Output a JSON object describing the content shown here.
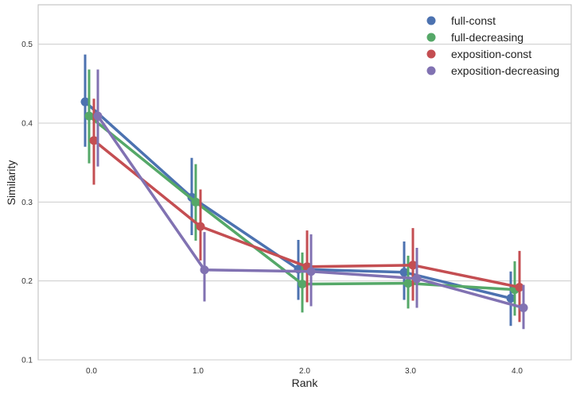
{
  "chart_data": {
    "type": "line",
    "title": "",
    "xlabel": "Rank",
    "ylabel": "Similarity",
    "categories": [
      "0.0",
      "1.0",
      "2.0",
      "3.0",
      "4.0"
    ],
    "yticks": [
      "0.1",
      "0.2",
      "0.3",
      "0.4",
      "0.5"
    ],
    "ylim": [
      0.1,
      0.55
    ],
    "grid": true,
    "legend_position": "top-right",
    "series": [
      {
        "name": "full-const",
        "color": "#4c72b0",
        "values": [
          0.427,
          0.306,
          0.215,
          0.211,
          0.178
        ],
        "lower": [
          0.37,
          0.258,
          0.176,
          0.176,
          0.143
        ],
        "upper": [
          0.487,
          0.356,
          0.252,
          0.25,
          0.212
        ]
      },
      {
        "name": "full-decreasing",
        "color": "#55a868",
        "values": [
          0.409,
          0.3,
          0.196,
          0.197,
          0.189
        ],
        "lower": [
          0.349,
          0.251,
          0.16,
          0.165,
          0.156
        ],
        "upper": [
          0.468,
          0.348,
          0.236,
          0.232,
          0.225
        ]
      },
      {
        "name": "exposition-const",
        "color": "#c44e52",
        "values": [
          0.378,
          0.269,
          0.218,
          0.22,
          0.192
        ],
        "lower": [
          0.322,
          0.226,
          0.173,
          0.175,
          0.148
        ],
        "upper": [
          0.431,
          0.316,
          0.264,
          0.267,
          0.238
        ]
      },
      {
        "name": "exposition-decreasing",
        "color": "#8172b2",
        "values": [
          0.409,
          0.214,
          0.212,
          0.203,
          0.166
        ],
        "lower": [
          0.345,
          0.174,
          0.168,
          0.166,
          0.139
        ],
        "upper": [
          0.468,
          0.262,
          0.259,
          0.242,
          0.195
        ]
      }
    ]
  }
}
